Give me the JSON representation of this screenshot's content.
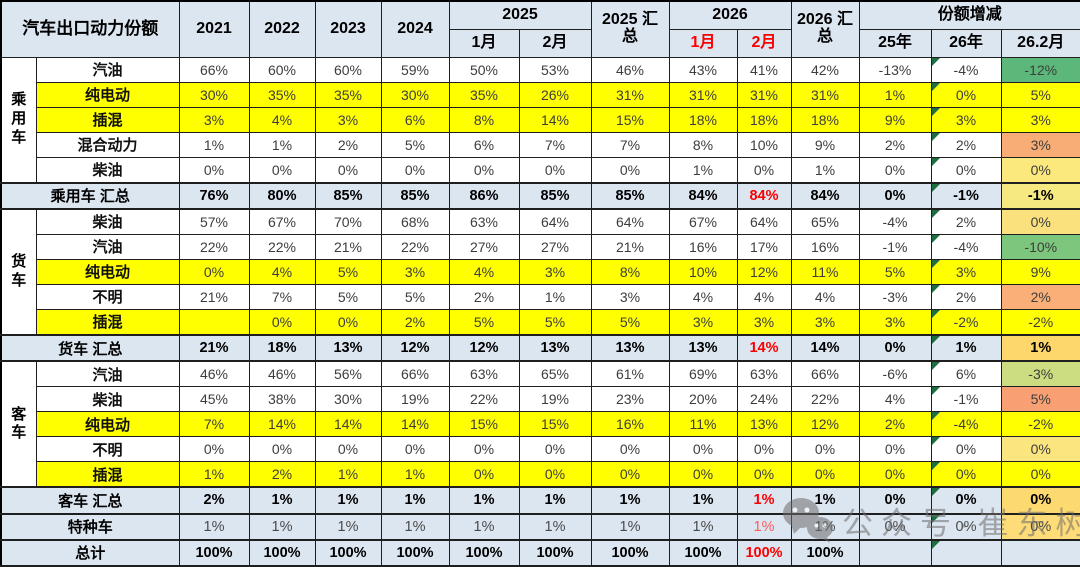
{
  "title": "汽车出口动力份额",
  "colors": {
    "band": "#dce6f1",
    "highlight": "#ffff00",
    "red_text": "#ff5a5a",
    "red_bold": "#fb0000",
    "triangle": "#1d6f42"
  },
  "header": {
    "years": [
      "2021",
      "2022",
      "2023",
      "2024"
    ],
    "g2025": "2025",
    "m2025": [
      "1月",
      "2月"
    ],
    "t2025": "2025 汇总",
    "g2026": "2026",
    "m2026": [
      "1月",
      "2月"
    ],
    "t2026": "2026 汇总",
    "share": "份额增减",
    "share_cols": [
      "25年",
      "26年",
      "26.2月"
    ]
  },
  "watermark": {
    "icon": "wechat-icon",
    "text": "公众号·崔东树"
  },
  "chart_data": {
    "type": "table",
    "title": "汽车出口动力份额",
    "columns": [
      "2021",
      "2022",
      "2023",
      "2024",
      "2025-1月",
      "2025-2月",
      "2025汇总",
      "2026-1月",
      "2026-2月",
      "2026汇总",
      "份额增减-25年",
      "份额增减-26年",
      "份额增减-26.2月"
    ],
    "groups": [
      {
        "name": "乘用车",
        "rows": [
          {
            "label": "汽油",
            "hl": false,
            "v": [
              "66%",
              "60%",
              "60%",
              "59%",
              "50%",
              "53%",
              "46%",
              "43%",
              "41%",
              "42%",
              "-13%",
              "-4%",
              "-12%"
            ],
            "d": "#5cb87a"
          },
          {
            "label": "纯电动",
            "hl": true,
            "v": [
              "30%",
              "35%",
              "35%",
              "30%",
              "35%",
              "26%",
              "31%",
              "31%",
              "31%",
              "31%",
              "1%",
              "0%",
              "5%"
            ],
            "d": "#f5886f"
          },
          {
            "label": "插混",
            "hl": true,
            "v": [
              "3%",
              "4%",
              "3%",
              "6%",
              "8%",
              "14%",
              "15%",
              "18%",
              "18%",
              "18%",
              "9%",
              "3%",
              "3%"
            ],
            "d": "#f9ad76"
          },
          {
            "label": "混合动力",
            "hl": false,
            "v": [
              "1%",
              "1%",
              "2%",
              "5%",
              "6%",
              "7%",
              "7%",
              "8%",
              "10%",
              "9%",
              "2%",
              "2%",
              "3%"
            ],
            "d": "#f9ad76"
          },
          {
            "label": "柴油",
            "hl": false,
            "v": [
              "0%",
              "0%",
              "0%",
              "0%",
              "0%",
              "0%",
              "0%",
              "1%",
              "0%",
              "1%",
              "0%",
              "0%",
              "0%"
            ],
            "d": "#fce97e"
          }
        ],
        "total": {
          "label": "乘用车 汇总",
          "v": [
            "76%",
            "80%",
            "85%",
            "85%",
            "86%",
            "85%",
            "85%",
            "84%",
            "84%",
            "84%",
            "0%",
            "-1%",
            "-1%"
          ],
          "d": "#f6e982"
        }
      },
      {
        "name": "货车",
        "rows": [
          {
            "label": "柴油",
            "hl": false,
            "v": [
              "57%",
              "67%",
              "70%",
              "68%",
              "63%",
              "64%",
              "64%",
              "67%",
              "64%",
              "65%",
              "-4%",
              "2%",
              "0%"
            ],
            "d": "#fbe07e"
          },
          {
            "label": "汽油",
            "hl": false,
            "v": [
              "22%",
              "22%",
              "21%",
              "22%",
              "27%",
              "27%",
              "21%",
              "16%",
              "17%",
              "16%",
              "-1%",
              "-4%",
              "-10%"
            ],
            "d": "#7dc67e"
          },
          {
            "label": "纯电动",
            "hl": true,
            "v": [
              "0%",
              "4%",
              "5%",
              "3%",
              "4%",
              "3%",
              "8%",
              "10%",
              "12%",
              "11%",
              "5%",
              "3%",
              "9%"
            ],
            "d": "#f8696b"
          },
          {
            "label": "不明",
            "hl": false,
            "v": [
              "21%",
              "7%",
              "5%",
              "5%",
              "2%",
              "1%",
              "3%",
              "4%",
              "4%",
              "4%",
              "-3%",
              "2%",
              "2%"
            ],
            "d": "#fbaf78"
          },
          {
            "label": "插混",
            "hl": true,
            "v": [
              "",
              "0%",
              "0%",
              "2%",
              "5%",
              "5%",
              "5%",
              "3%",
              "3%",
              "3%",
              "3%",
              "-2%",
              "-2%"
            ],
            "d": "#dfe182"
          }
        ],
        "total": {
          "label": "货车 汇总",
          "v": [
            "21%",
            "18%",
            "13%",
            "12%",
            "12%",
            "13%",
            "13%",
            "13%",
            "14%",
            "14%",
            "0%",
            "1%",
            "1%"
          ],
          "d": "#fdd76c"
        }
      },
      {
        "name": "客车",
        "rows": [
          {
            "label": "汽油",
            "hl": false,
            "v": [
              "46%",
              "46%",
              "56%",
              "66%",
              "63%",
              "65%",
              "61%",
              "69%",
              "63%",
              "66%",
              "-6%",
              "6%",
              "-3%"
            ],
            "d": "#cbdc81"
          },
          {
            "label": "柴油",
            "hl": false,
            "v": [
              "45%",
              "38%",
              "30%",
              "19%",
              "22%",
              "19%",
              "23%",
              "20%",
              "24%",
              "22%",
              "4%",
              "-1%",
              "5%"
            ],
            "d": "#f89f73"
          },
          {
            "label": "纯电动",
            "hl": true,
            "v": [
              "7%",
              "14%",
              "14%",
              "14%",
              "15%",
              "15%",
              "16%",
              "11%",
              "13%",
              "12%",
              "2%",
              "-4%",
              "-2%"
            ],
            "d": "#dfe182"
          },
          {
            "label": "不明",
            "hl": false,
            "v": [
              "0%",
              "0%",
              "0%",
              "0%",
              "0%",
              "0%",
              "0%",
              "0%",
              "0%",
              "0%",
              "0%",
              "0%",
              "0%"
            ],
            "d": "#fbe57f"
          },
          {
            "label": "插混",
            "hl": true,
            "v": [
              "1%",
              "2%",
              "1%",
              "1%",
              "0%",
              "0%",
              "0%",
              "0%",
              "0%",
              "0%",
              "0%",
              "0%",
              "0%"
            ],
            "d": "#ffe28a"
          }
        ],
        "total": {
          "label": "客车 汇总",
          "v": [
            "2%",
            "1%",
            "1%",
            "1%",
            "1%",
            "1%",
            "1%",
            "1%",
            "1%",
            "1%",
            "0%",
            "0%",
            "0%"
          ],
          "d": "#fdda70"
        }
      }
    ],
    "extras": [
      {
        "label": "特种车",
        "light": true,
        "v": [
          "1%",
          "1%",
          "1%",
          "1%",
          "1%",
          "1%",
          "1%",
          "1%",
          "1%",
          "1%",
          "0%",
          "0%",
          "0%"
        ],
        "d": "#fedc77"
      },
      {
        "label": "总计",
        "light": false,
        "v": [
          "100%",
          "100%",
          "100%",
          "100%",
          "100%",
          "100%",
          "100%",
          "100%",
          "100%",
          "100%",
          "",
          "",
          ""
        ],
        "d": ""
      }
    ]
  }
}
